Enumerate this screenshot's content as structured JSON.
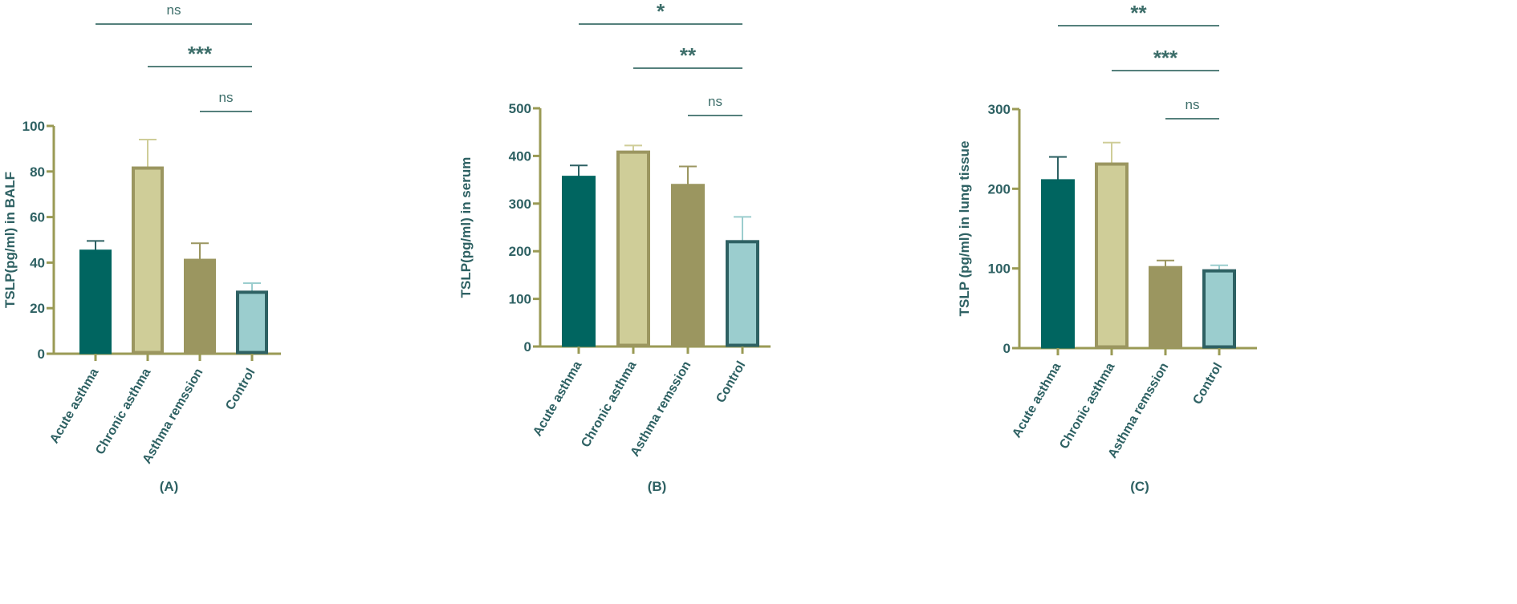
{
  "chart_data": [
    {
      "type": "bar",
      "panel_label": "(A)",
      "categories": [
        "Acute asthma",
        "Chronic asthma",
        "Asthma remssion",
        "Control"
      ],
      "values": [
        45,
        81.5,
        41,
        27
      ],
      "error_upper": [
        49.5,
        94,
        48.5,
        31
      ],
      "ylabel": "TSLP(pg/ml) in BALF",
      "ylim": [
        0,
        100
      ],
      "yticks": [
        0,
        20,
        40,
        60,
        80,
        100
      ],
      "grid": false,
      "significance": [
        {
          "from": "Acute asthma",
          "to": "Control",
          "label": "ns"
        },
        {
          "from": "Chronic asthma",
          "to": "Control",
          "label": "***"
        },
        {
          "from": "Asthma remssion",
          "to": "Control",
          "label": "ns"
        }
      ]
    },
    {
      "type": "bar",
      "panel_label": "(B)",
      "categories": [
        "Acute asthma",
        "Chronic asthma",
        "Asthma remssion",
        "Control"
      ],
      "values": [
        355,
        408,
        338,
        220
      ],
      "error_upper": [
        380,
        422,
        378,
        272
      ],
      "ylabel": "TSLP(pg/ml) in serum",
      "ylim": [
        0,
        500
      ],
      "yticks": [
        0,
        100,
        200,
        300,
        400,
        500
      ],
      "grid": false,
      "significance": [
        {
          "from": "Acute asthma",
          "to": "Control",
          "label": "*"
        },
        {
          "from": "Chronic asthma",
          "to": "Control",
          "label": "**"
        },
        {
          "from": "Asthma remssion",
          "to": "Control",
          "label": "ns"
        }
      ]
    },
    {
      "type": "bar",
      "panel_label": "(C)",
      "categories": [
        "Acute asthma",
        "Chronic asthma",
        "Asthma remssion",
        "Control"
      ],
      "values": [
        210,
        231,
        101,
        97
      ],
      "error_upper": [
        240,
        258,
        110,
        104
      ],
      "ylabel": "TSLP  (pg/ml) in lung tissue",
      "ylim": [
        0,
        300
      ],
      "yticks": [
        0,
        100,
        200,
        300
      ],
      "grid": false,
      "significance": [
        {
          "from": "Acute asthma",
          "to": "Control",
          "label": "**"
        },
        {
          "from": "Chronic asthma",
          "to": "Control",
          "label": "***"
        },
        {
          "from": "Asthma remssion",
          "to": "Control",
          "label": "ns"
        }
      ]
    }
  ],
  "colors": {
    "axis": "#9a9a55",
    "text": "#2e6163",
    "sig_line": "#3d6e6a",
    "bar_fills": [
      "#006560",
      "#cfcd98",
      "#9b9660",
      "#9bcdce"
    ],
    "bar_strokes": [
      "#006560",
      "#9b9660",
      "#9b9660",
      "#2e6163"
    ],
    "error_colors": [
      "#2e6163",
      "#cfcd98",
      "#9b9660",
      "#9bcdce"
    ]
  }
}
